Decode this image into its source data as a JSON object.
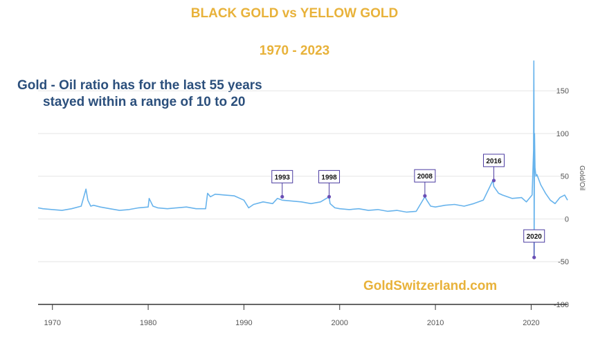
{
  "title": "BLACK GOLD vs YELLOW GOLD",
  "subtitle": "1970 - 2023",
  "callout": [
    "Gold - Oil ratio has for the last 55 years",
    "stayed within a range of 10 to 20"
  ],
  "watermark": "GoldSwitzerland.com",
  "colors": {
    "title": "#e8b23a",
    "callout": "#2b4f7c",
    "line": "#67b3ec",
    "marker": "#6a4fb5",
    "flag_border": "#4a3aa0"
  },
  "chart_data": {
    "type": "line",
    "ylabel": "Gold/Oil",
    "xlim": [
      1968.5,
      2023.8
    ],
    "ylim": [
      -100,
      185
    ],
    "x_ticks": [
      1970,
      1980,
      1990,
      2000,
      2010,
      2020
    ],
    "x_tick_labels": [
      "1970",
      "1980",
      "1990",
      "2000",
      "2010",
      "2020"
    ],
    "y_ticks": [
      150,
      100,
      50,
      0,
      -50,
      -100
    ],
    "y_tick_labels": [
      "150",
      "100",
      "50",
      "0",
      "-50",
      "-100"
    ],
    "grid": "horizontal",
    "series": [
      {
        "x": [
          1968.5,
          1969,
          1970,
          1971,
          1972,
          1973,
          1973.5,
          1973.7,
          1974,
          1974.3,
          1975,
          1976,
          1977,
          1978,
          1979,
          1980,
          1980.1,
          1980.5,
          1981,
          1982,
          1983,
          1984,
          1985,
          1986,
          1986.2,
          1986.5,
          1987,
          1988,
          1989,
          1990,
          1990.5,
          1991,
          1992,
          1993,
          1993.5,
          1994,
          1995,
          1996,
          1997,
          1998,
          1998.9,
          1999,
          1999.5,
          2000,
          2001,
          2002,
          2003,
          2004,
          2005,
          2006,
          2007,
          2008,
          2008.9,
          2009.1,
          2009.5,
          2010,
          2011,
          2012,
          2013,
          2014,
          2015,
          2016,
          2016.1,
          2016.6,
          2017,
          2018,
          2019,
          2019.5,
          2020.1,
          2020.25,
          2020.28,
          2020.3,
          2020.31,
          2020.35,
          2020.4,
          2020.5,
          2020.6,
          2021,
          2021.5,
          2022,
          2022.5,
          2023,
          2023.5,
          2023.8
        ],
        "y": [
          13,
          12,
          11,
          10,
          12,
          15,
          35,
          22,
          15,
          16,
          14,
          12,
          10,
          11,
          13,
          14,
          24,
          15,
          13,
          12,
          13,
          14,
          12,
          12,
          30,
          26,
          29,
          28,
          27,
          22,
          13,
          17,
          20,
          18,
          24,
          22,
          21,
          20,
          18,
          20,
          26,
          18,
          13,
          12,
          11,
          12,
          10,
          11,
          9,
          10,
          8,
          9,
          26,
          22,
          15,
          14,
          16,
          17,
          15,
          18,
          22,
          45,
          38,
          30,
          28,
          24,
          25,
          20,
          28,
          80,
          185,
          115,
          -45,
          100,
          60,
          50,
          52,
          40,
          30,
          22,
          18,
          25,
          28,
          22
        ]
      }
    ],
    "markers": [
      {
        "label": "1993",
        "x": 1994.0,
        "y": 26
      },
      {
        "label": "1998",
        "x": 1998.9,
        "y": 26
      },
      {
        "label": "2008",
        "x": 2008.9,
        "y": 27
      },
      {
        "label": "2016",
        "x": 2016.1,
        "y": 45
      },
      {
        "label": "2020",
        "x": 2020.31,
        "y": -45
      }
    ]
  }
}
